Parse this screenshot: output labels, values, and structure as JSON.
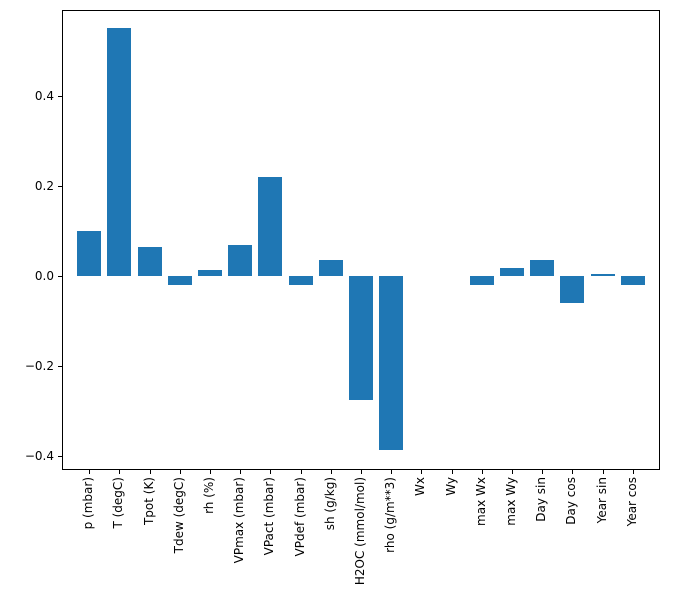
{
  "chart_data": {
    "type": "bar",
    "title": "",
    "xlabel": "",
    "ylabel": "",
    "categories": [
      "p (mbar)",
      "T (degC)",
      "Tpot (K)",
      "Tdew (degC)",
      "rh (%)",
      "VPmax (mbar)",
      "VPact (mbar)",
      "VPdef (mbar)",
      "sh (g/kg)",
      "H2OC (mmol/mol)",
      "rho (g/m**3)",
      "Wx",
      "Wy",
      "max Wx",
      "max Wy",
      "Day sin",
      "Day cos",
      "Year sin",
      "Year cos"
    ],
    "values": [
      0.1,
      0.55,
      0.065,
      -0.02,
      0.013,
      0.068,
      0.22,
      -0.02,
      0.035,
      -0.275,
      -0.385,
      0,
      0,
      -0.02,
      0.018,
      0.035,
      -0.06,
      0.005,
      -0.02
    ],
    "ylim": [
      -0.43,
      0.59
    ],
    "yticks": [
      -0.4,
      -0.2,
      0.0,
      0.2,
      0.4
    ],
    "ytick_labels": [
      "−0.4",
      "−0.2",
      "0.0",
      "0.2",
      "0.4"
    ],
    "bar_color": "#1f77b4",
    "grid": false,
    "legend": null
  }
}
